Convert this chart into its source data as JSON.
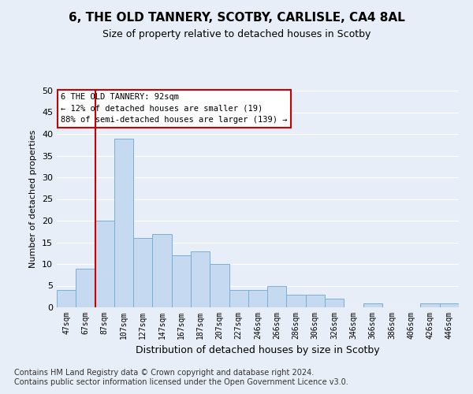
{
  "title": "6, THE OLD TANNERY, SCOTBY, CARLISLE, CA4 8AL",
  "subtitle": "Size of property relative to detached houses in Scotby",
  "xlabel": "Distribution of detached houses by size in Scotby",
  "ylabel": "Number of detached properties",
  "bar_labels": [
    "47sqm",
    "67sqm",
    "87sqm",
    "107sqm",
    "127sqm",
    "147sqm",
    "167sqm",
    "187sqm",
    "207sqm",
    "227sqm",
    "246sqm",
    "266sqm",
    "286sqm",
    "306sqm",
    "326sqm",
    "346sqm",
    "366sqm",
    "386sqm",
    "406sqm",
    "426sqm",
    "446sqm"
  ],
  "bar_values": [
    4,
    9,
    20,
    39,
    16,
    17,
    12,
    13,
    10,
    4,
    4,
    5,
    3,
    3,
    2,
    0,
    1,
    0,
    0,
    1,
    1
  ],
  "bar_color": "#c5d9f0",
  "bar_edge_color": "#7bafd4",
  "vline_color": "#cc0000",
  "vline_index": 2,
  "annotation_text": "6 THE OLD TANNERY: 92sqm\n← 12% of detached houses are smaller (19)\n88% of semi-detached houses are larger (139) →",
  "annotation_box_color": "#ffffff",
  "annotation_box_edge": "#cc0000",
  "ylim": [
    0,
    50
  ],
  "yticks": [
    0,
    5,
    10,
    15,
    20,
    25,
    30,
    35,
    40,
    45,
    50
  ],
  "background_color": "#e8eef8",
  "grid_color": "#ffffff",
  "title_fontsize": 11,
  "subtitle_fontsize": 9,
  "xlabel_fontsize": 9,
  "ylabel_fontsize": 8,
  "tick_fontsize": 7,
  "footer_text": "Contains HM Land Registry data © Crown copyright and database right 2024.\nContains public sector information licensed under the Open Government Licence v3.0.",
  "footer_fontsize": 7
}
